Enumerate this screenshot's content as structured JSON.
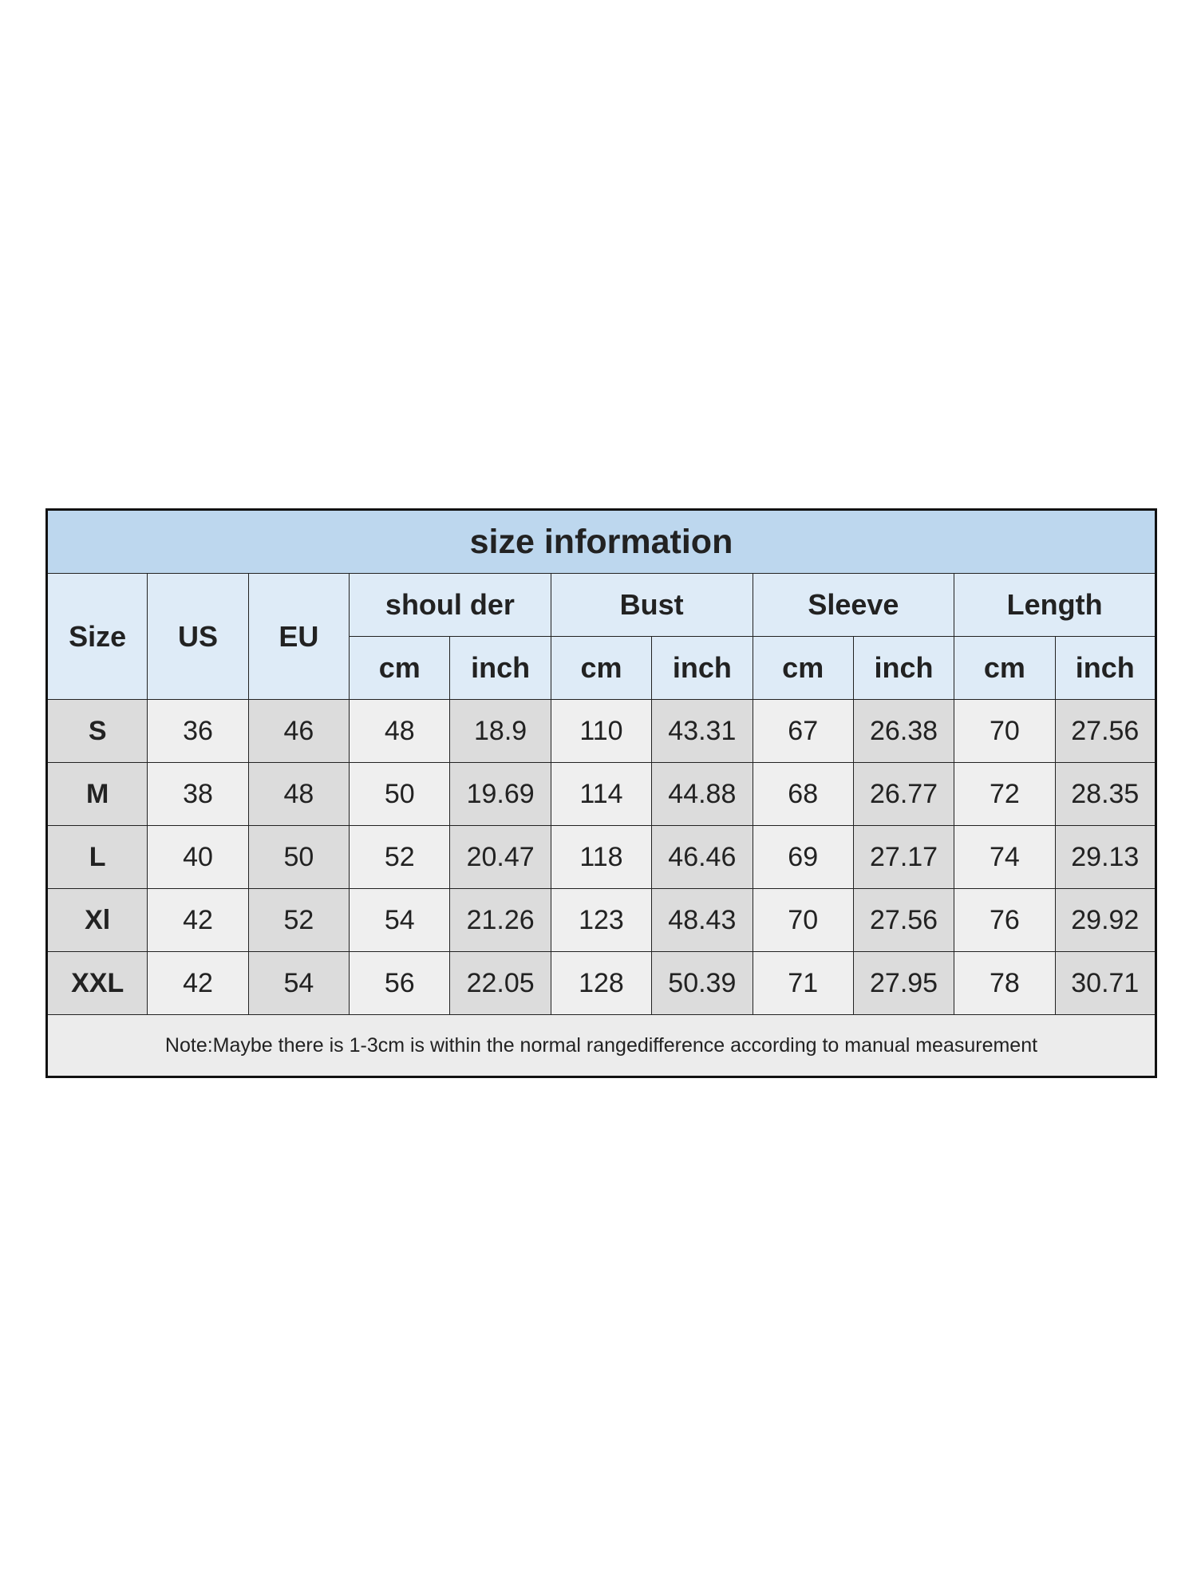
{
  "title": "size information",
  "headers": {
    "size": "Size",
    "us": "US",
    "eu": "EU",
    "groups": [
      "shoul der",
      "Bust",
      "Sleeve",
      "Length"
    ],
    "units": [
      "cm",
      "inch",
      "cm",
      "inch",
      "cm",
      "inch",
      "cm",
      "inch"
    ]
  },
  "rows": [
    [
      "S",
      "36",
      "46",
      "48",
      "18.9",
      "110",
      "43.31",
      "67",
      "26.38",
      "70",
      "27.56"
    ],
    [
      "M",
      "38",
      "48",
      "50",
      "19.69",
      "114",
      "44.88",
      "68",
      "26.77",
      "72",
      "28.35"
    ],
    [
      "L",
      "40",
      "50",
      "52",
      "20.47",
      "118",
      "46.46",
      "69",
      "27.17",
      "74",
      "29.13"
    ],
    [
      "Xl",
      "42",
      "52",
      "54",
      "21.26",
      "123",
      "48.43",
      "70",
      "27.56",
      "76",
      "29.92"
    ],
    [
      "XXL",
      "42",
      "54",
      "56",
      "22.05",
      "128",
      "50.39",
      "71",
      "27.95",
      "78",
      "30.71"
    ]
  ],
  "note": "Note:Maybe there is 1-3cm  is within the normal rangedifference according to manual measurement",
  "colors": {
    "title_bg": "#bdd7ee",
    "header_bg": "#deebf7",
    "shade_dark": "#dcdcdc",
    "shade_light": "#efefef"
  }
}
